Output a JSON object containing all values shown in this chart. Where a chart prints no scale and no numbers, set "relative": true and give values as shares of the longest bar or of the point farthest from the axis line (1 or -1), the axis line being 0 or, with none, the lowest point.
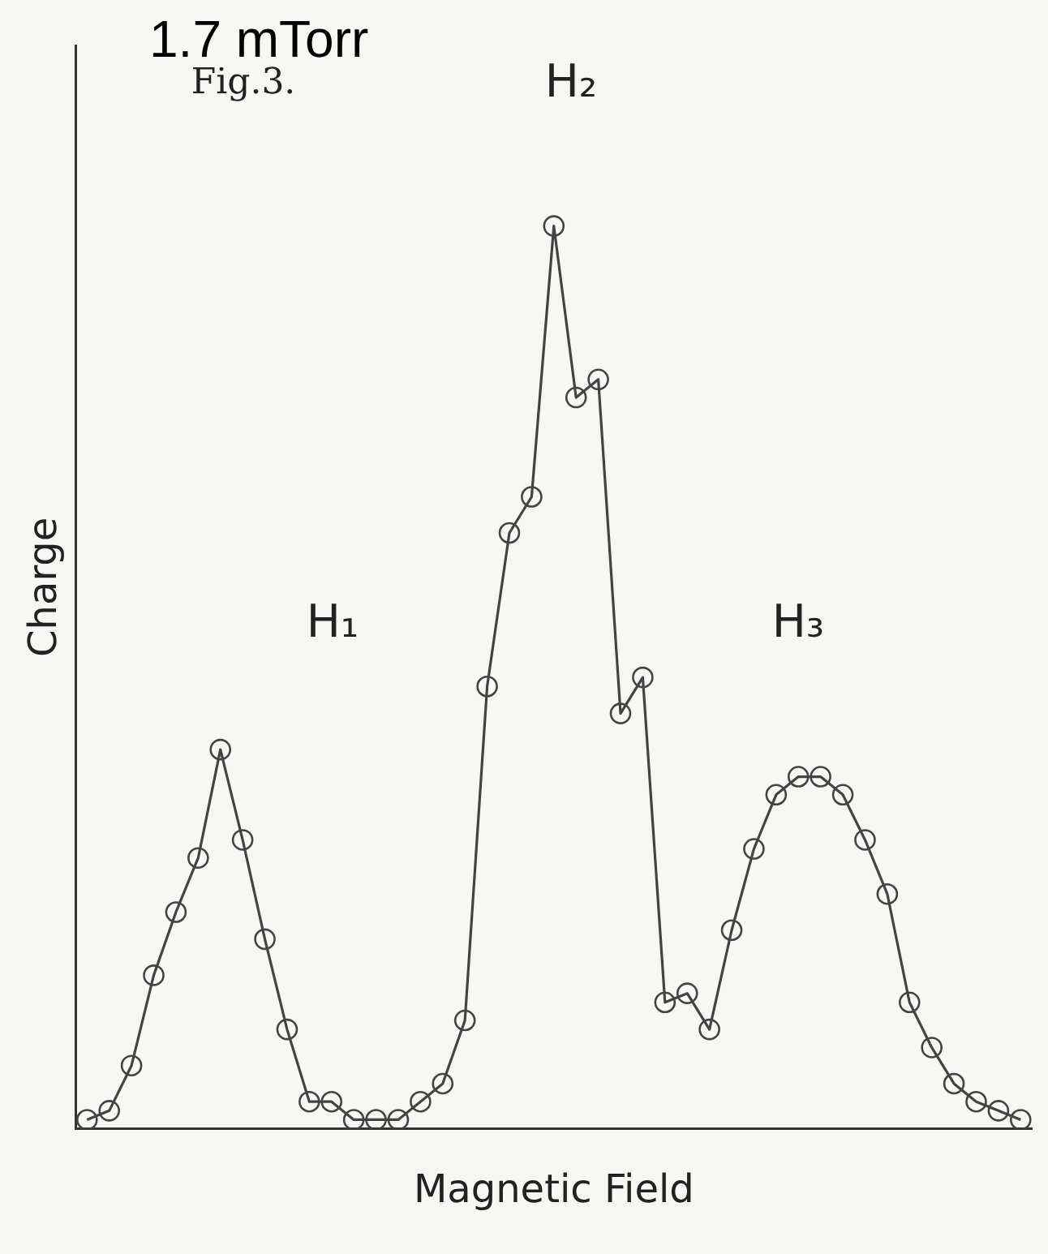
{
  "chart_data": {
    "type": "line",
    "title": "1.7 mTorr",
    "xlabel": "Magnetic Field",
    "ylabel": "Charge",
    "relative": true,
    "legend": false,
    "marker": "circle",
    "annotations": [
      "Fig.3.",
      "H₁",
      "H₂",
      "H₃"
    ],
    "categories": [
      null,
      null,
      null,
      null,
      null,
      null,
      null,
      null,
      null,
      null,
      null,
      null,
      null,
      null,
      null,
      null,
      null,
      null,
      null,
      null,
      null,
      null,
      null,
      null,
      null,
      null,
      null,
      null,
      null,
      null,
      null,
      null,
      null,
      null,
      null,
      null,
      null,
      null,
      null,
      null,
      null,
      null,
      null
    ],
    "series": [
      {
        "color": "#444444",
        "values": [
          0.01,
          0.02,
          0.07,
          0.17,
          0.24,
          0.3,
          0.42,
          0.32,
          0.21,
          0.11,
          0.03,
          0.03,
          0.01,
          0.01,
          0.01,
          0.03,
          0.05,
          0.12,
          0.49,
          0.66,
          0.7,
          1.0,
          0.81,
          0.83,
          0.46,
          0.5,
          0.14,
          0.15,
          0.11,
          0.22,
          0.31,
          0.37,
          0.39,
          0.39,
          0.37,
          0.32,
          0.26,
          0.14,
          0.09,
          0.05,
          0.03,
          0.02,
          0.01
        ]
      }
    ]
  }
}
